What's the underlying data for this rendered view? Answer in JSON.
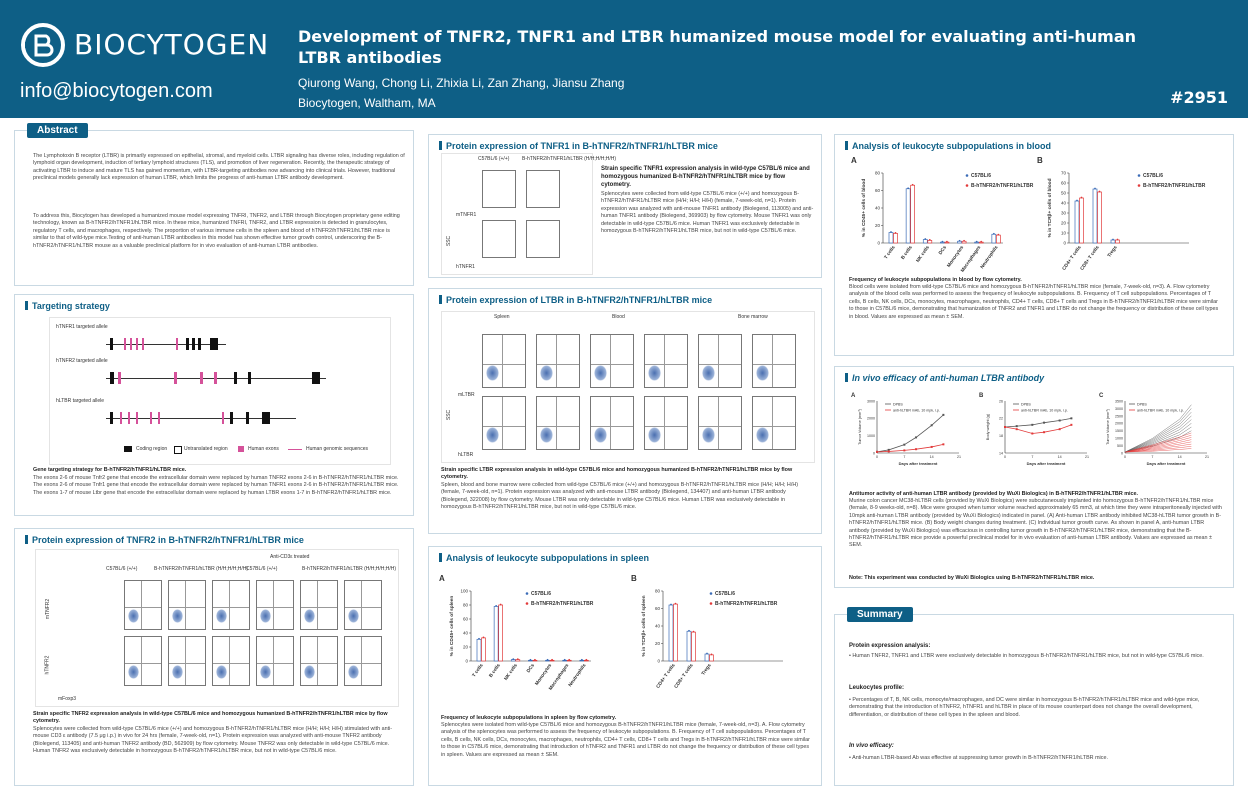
{
  "header": {
    "logo_text": "BIOCYTOGEN",
    "email": "info@biocytogen.com",
    "title": "Development of TNFR2, TNFR1 and LTBR humanized mouse model for evaluating anti-human LTBR antibodies",
    "authors": "Qiurong Wang, Chong Li, Zhixia Li, Zan Zhang, Jiansu Zhang",
    "affiliation": "Biocytogen, Waltham, MA",
    "poster_id": "#2951"
  },
  "abstract": {
    "tag": "Abstract",
    "p1": "The Lymphotoxin B receptor (LTBR) is primarily expressed on epithelial, stromal, and myeloid cells. LTBR signaling has diverse roles, including regulation of lymphoid organ development, induction of tertiary lymphoid structures (TLS), and promotion of liver regeneration. Recently, the therapeutic strategy of activating LTBR to induce and mature TLS has gained momentum, with LTBR-targeting antibodies now advancing into clinical trials. However, traditional preclinical models generally lack expression of human LTBR, which limits the progress of anti-human LTBR antibody development.",
    "p2": "To address this, Biocytogen has developed a humanized mouse model expressing TNFRI, TNFR2, and LTBR through Biocytogen proprietary gene editing technology, known as B-hTNFR2/hTNFR1/hLTBR mice. In these mice, humanized TNFRI, TNFR2, and LTBR expression is detected in granulocytes, regulatory T cells, and macrophages, respectively. The proportion of various immune cells in the spleen and blood of hTNFR2/hTNFR1/hLTBR mice is similar to that of wild-type mice.Testing of anti-human LTBR antibodies in this model has shown effective tumor growth control, underscoring the B-hTNFR2/hTNFR1/hLTBR mouse as a valuable preclinical platform for in vivo evaluation of anti-human LTBR antibodies."
  },
  "targeting": {
    "tag": "Targeting strategy",
    "allele1": "hTNFR1 targeted allele",
    "allele2": "hTNFR2 targeted allele",
    "allele3": "hLTBR targeted allele",
    "legend_coding": "Coding region",
    "legend_untranslated": "Untranslated region",
    "legend_human_exons": "Human exons",
    "legend_human_genomic": "Human genomic sequences",
    "caption_title": "Gene targeting strategy for B-hTNFR2/hTNFR1/hLTBR mice.",
    "caption": "The exons 2-6 of mouse Tnfr2 gene that encode the extracellular domain were replaced by human TNFR2 exons 2-6 in B-hTNFR2/hTNFR1/hLTBR mice. The exons 2-6 of mouse Tnfr1 gene that encode the extracellular domain were replaced by human TNFR1 exons 2-6 in B-hTNFR2/hTNFR1/hLTBR mice. The exons 1-7 of mouse Ltbr gene that encode the extracellular domain were replaced by human LTBR exons 1-7 in B-hTNFR2/hTNFR1/hLTBR mice."
  },
  "tnfr2_expr": {
    "tag": "Protein expression of TNFR2 in B-hTNFR2/hTNFR1/hLTBR mice",
    "treated_label": "Anti-CD3ε treated",
    "col1": "C57BL/6 (+/+)",
    "col2": "B-hTNFR2/hTNFR1/hLTBR (H/H;H/H;H/H)",
    "col3": "C57BL/6 (+/+)",
    "col4": "B-hTNFR2/hTNFR1/hLTBR (H/H;H/H;H/H)",
    "ylabel1": "mTNFR2",
    "ylabel2": "hTNFR2",
    "xlabel": "mFoxp3",
    "caption_title": "Strain specific TNFR2 expression analysis in wild-type C57BL/6 mice and homozygous humanized B-hTNFR2/hTNFR1/hLTBR mice by flow cytometry.",
    "caption": "Splenocytes were collected from wild-type C57BL/6 mice (+/+) and homozygous B-hTNFR2/hTNFR1/hLTBR mice (H/H; H/H; H/H) stimulated with anti-mouse CD3 ε antibody (7.5 μg i.p.) in vivo for 24 hrs (female, 7-week-old, n=1). Protein expression was analyzed with anti-mouse TNFR2 antibody (Biolegend, 113405) and anti-human TNFR2 antibody (BD, 562909) by flow cytometry. Mouse TNFR2 was only detectable in wild-type C57BL/6 mice. Human TNFR2 was exclusively detectable in homozygous B-hTNFR2/hTNFR1/hLTBR mice, but not in wild-type C57BL/6 mice."
  },
  "tnfr1_expr": {
    "tag": "Protein expression of TNFR1 in B-hTNFR2/hTNFR1/hLTBR mice",
    "col1": "C57BL/6 (+/+)",
    "col2": "B-hTNFR2/hTNFR1/hLTBR (H/H;H/H;H/H)",
    "ylabel1": "mTNFR1",
    "ylabel2": "hTNFR1",
    "side": "SSC",
    "caption_title": "Strain specific TNFR1 expression analysis in wild-type C57BL/6 mice and homozygous humanized B-hTNFR2/hTNFR1/hLTBR mice by flow cytometry.",
    "caption": "Splenocytes were collected from wild-type C57BL/6 mice (+/+) and homozygous B-hTNFR2/hTNFR1/hLTBR mice (H/H; H/H; H/H) (female, 7-week-old, n=1). Protein expression was analyzed with anti-mouse TNFR1 antibody (Biolegend, 113005) and anti-human TNFR1 antibody (Biolegend, 369903) by flow cytometry. Mouse TNFR1 was only detectable in wild-type C57BL/6 mice. Human TNFR1 was exclusively detectable in homozygous B-hTNFR2/hTNFR1/hLTBR mice, but not in wild-type C57BL/6 mice."
  },
  "ltbr_expr": {
    "tag": "Protein expression of LTBR in B-hTNFR2/hTNFR1/hLTBR mice",
    "tissue1": "Spleen",
    "tissue2": "Blood",
    "tissue3": "Bone marrow",
    "col_wt": "C57BL/6 (+/+)",
    "col_h": "B-hTNFR2/hTNFR1/hLTBR (H/H; H/H; H/H)",
    "ylabel1": "mLTBR",
    "ylabel2": "hLTBR",
    "side": "SSC",
    "caption_title": "Strain specific LTBR expression analysis in wild-type C57BL/6 mice and homozygous humanized B-hTNFR2/hTNFR1/hLTBR mice by flow cytometry.",
    "caption": "Spleen, blood and bone marrow were collected from wild-type C57BL/6 mice (+/+) and homozygous B-hTNFR2/hTNFR1/hLTBR mice (H/H; H/H; H/H) (female, 7-week-old, n=1). Protein expression was analyzed with anti-mouse LTBR antibody (Biolegend, 134407) and anti-human LTBR antibody (Biolegend, 322008) by flow cytometry. Mouse LTBR was only detectable in wild-type C57BL/6 mice. Human LTBR was exclusively detectable in homozygous B-hTNFR2/hTNFR1/hLTBR mice, but not in wild-type C57BL/6 mice."
  },
  "spleen": {
    "tag": "Analysis of leukocyte subpopulations in spleen",
    "caption_title": "Frequency of leukocyte subpopulations in spleen by flow cytometry.",
    "caption": "Splenocytes were isolated from wild-type C57BL/6 mice and homozygous B-hTNFR2/hTNFR1/hLTBR mice (female, 7-week-old, n=3). A. Flow cytometry analysis of the splenocytes was performed to assess the frequency of leukocyte subpopulations. B. Frequency of T cell subpopulations. Percentages of T cells, B cells, NK cells, DCs, monocytes, macrophages, neutrophils, CD4+ T cells, CD8+ T cells and Tregs in B-hTNFR2/hTNFR1/hLTBR mice were similar to those in C57BL/6 mice, demonstrating that introduction of hTNFR2 and TNFR1 and LTBR do not change the frequency or distribution of these cell types in spleen. Values are expressed as mean ± SEM."
  },
  "blood": {
    "tag": "Analysis of leukocyte subpopulations in blood",
    "caption_title": "Frequency of leukocyte subpopulations in blood by flow cytometry.",
    "caption": "Blood cells were isolated from wild-type C57BL/6 mice and homozygous B-hTNFR2/hTNFR1/hLTBR mice (female, 7-week-old, n=3). A. Flow cytometry analysis of the blood cells was performed to assess the frequency of leukocyte subpopulations. B. Frequency of T cell subpopulations. Percentages of T cells, B cells, NK cells, DCs, monocytes, macrophages, neutrophils, CD4+ T cells, CD8+ T cells and Tregs in B-hTNFR2/hTNFR1/hLTBR mice were similar to those in C57BL/6 mice, demonstrating that humanization of TNFR2 and TNFR1 and LTBR do not change the frequency or distribution of these cell types in blood. Values are expressed as mean ± SEM."
  },
  "invivo": {
    "tag": "In vivo efficacy of anti-human LTBR antibody",
    "caption_title": "Antitumor activity of anti-human LTBR antibody (provided by WuXi Biologics) in B-hTNFR2/hTNFR1/hLTBR mice.",
    "caption": "Murine colon cancer MC38-hLTBR cells (provided by WuXi Biologics) were subcutaneously implanted into homozygous B-hTNFR2/hTNFR1/hLTBR mice (female, 8-9 weeks-old, n=8). Mice were grouped when tumor volume reached approximately 65 mm3, at which time they were intraperitoneally injected with 10mpk anti-human LTBR antibody (provided by WuXi Biologics) indicated in panel. (A) Anti-human LTBR antibody inhibited MC38-hLTBR tumor growth in B-hTNFR2/hTNFR1/hLTBR mice. (B) Body weight changes during treatment. (C) Individual tumor growth curve. As shown in panel A, anti-human LTBR antibody (provided by WuXi Biologics) was efficacious in controlling tumor growth in B-hTNFR2/hTNFR1/hLTBR mice, demonstrating that the B-hTNFR2/hTNFR1/hLTBR mice provide a powerful preclinical model for in vivo evaluation of anti-human LTBR antibody. Values are expressed as mean ± SEM.",
    "note": "Note: This experiment was conducted by WuXi Biologics using B-hTNFR2/hTNFR1/hLTBR mice."
  },
  "summary": {
    "tag": "Summary",
    "h1": "Protein expression analysis:",
    "b1": "Human TNFR2, TNFR1 and LTBR were exclusively detectable in homozygous B-hTNFR2/hTNFR1/hLTBR mice, but not in wild-type C57BL/6 mice.",
    "h2": "Leukocytes profile:",
    "b2": "Percentages of T, B, NK cells, monocyte/macrophages, and DC were similar in homozygous B-hTNFR2/hTNFR1/hLTBR mice and wild-type mice, demonstrating that the introduction of hTNFR2, hTNFR1 and hLTBR in place of its mouse counterpart does not change the overall development, differentiation, or distribution of these cell types in the spleen and blood.",
    "h3": "In vivo efficacy:",
    "b3": "Anti-human LTBR-based Ab was effective at suppressing tumor growth in B-hTNFR2/hTNFR1/hLTBR mice."
  },
  "chart_data": [
    {
      "type": "bar",
      "id": "spleen-A",
      "panel_label": "A",
      "categories": [
        "T cells",
        "B cells",
        "NK cells",
        "DCs",
        "Monocytes",
        "Macrophages",
        "Neutrophils"
      ],
      "series": [
        {
          "name": "C57BL/6",
          "values": [
            31,
            78,
            2,
            1,
            1,
            1,
            1
          ],
          "color": "#3b6cb7"
        },
        {
          "name": "B-hTNFR2/hTNFR1/hLTBR",
          "values": [
            33,
            80,
            2,
            1,
            1,
            1,
            1
          ],
          "color": "#e23a3a"
        }
      ],
      "ylabel": "% in CD45+ cells of spleen",
      "ylim": [
        0,
        100
      ],
      "yticks": [
        0,
        20,
        40,
        60,
        80,
        100
      ]
    },
    {
      "type": "bar",
      "id": "spleen-B",
      "panel_label": "B",
      "categories": [
        "CD4+ T cells",
        "CD8+ T cells",
        "Tregs"
      ],
      "series": [
        {
          "name": "C57BL/6",
          "values": [
            64,
            34,
            8
          ],
          "color": "#3b6cb7"
        },
        {
          "name": "B-hTNFR2/hTNFR1/hLTBR",
          "values": [
            65,
            33,
            7
          ],
          "color": "#e23a3a"
        }
      ],
      "ylabel": "% in TCRβ+ cells of spleen",
      "ylim": [
        0,
        80
      ],
      "yticks": [
        0,
        20,
        40,
        60,
        80
      ]
    },
    {
      "type": "bar",
      "id": "blood-A",
      "panel_label": "A",
      "categories": [
        "T cells",
        "B cells",
        "NK cells",
        "DCs",
        "Monocytes",
        "Macrophages",
        "Neutrophils"
      ],
      "series": [
        {
          "name": "C57BL/6",
          "values": [
            12,
            62,
            4,
            1,
            2,
            1,
            10
          ],
          "color": "#3b6cb7"
        },
        {
          "name": "B-hTNFR2/hTNFR1/hLTBR",
          "values": [
            11,
            66,
            3,
            1,
            2,
            1,
            9
          ],
          "color": "#e23a3a"
        }
      ],
      "ylabel": "% in CD45+ cells of blood",
      "ylim": [
        0,
        80
      ],
      "yticks": [
        0,
        20,
        40,
        60,
        80
      ]
    },
    {
      "type": "bar",
      "id": "blood-B",
      "panel_label": "B",
      "categories": [
        "CD4+ T cells",
        "CD8+ T cells",
        "Tregs"
      ],
      "series": [
        {
          "name": "C57BL/6",
          "values": [
            42,
            54,
            3
          ],
          "color": "#3b6cb7"
        },
        {
          "name": "B-hTNFR2/hTNFR1/hLTBR",
          "values": [
            45,
            51,
            3
          ],
          "color": "#e23a3a"
        }
      ],
      "ylabel": "% in TCRβ+ cells of blood",
      "ylim": [
        0,
        70
      ],
      "yticks": [
        0,
        10,
        20,
        30,
        40,
        50,
        60,
        70
      ]
    },
    {
      "type": "line",
      "id": "invivo-A",
      "panel_label": "A",
      "x": [
        0,
        3,
        7,
        10,
        14,
        17
      ],
      "series": [
        {
          "name": "DPBS",
          "values": [
            65,
            180,
            480,
            900,
            1600,
            2200
          ],
          "color": "#555555"
        },
        {
          "name": "anti-hLTBR mAb, 10 mpk, i.p.",
          "values": [
            65,
            90,
            150,
            220,
            350,
            500
          ],
          "color": "#e23a3a"
        }
      ],
      "xlabel": "Days after treatment",
      "ylabel": "Tumor Volume (mm³)",
      "ylim": [
        0,
        3000
      ],
      "yticks": [
        0,
        1000,
        2000,
        3000
      ],
      "xticks": [
        0,
        7,
        14,
        21
      ]
    },
    {
      "type": "line",
      "id": "invivo-B",
      "panel_label": "B",
      "x": [
        0,
        3,
        7,
        10,
        14,
        17
      ],
      "series": [
        {
          "name": "DPBS",
          "values": [
            20,
            20.2,
            20.5,
            21,
            21.5,
            22
          ],
          "color": "#555555"
        },
        {
          "name": "anti-hLTBR mAb, 10 mpk, i.p.",
          "values": [
            20,
            19.5,
            18.5,
            18.8,
            19.5,
            20.5
          ],
          "color": "#e23a3a"
        }
      ],
      "xlabel": "Days after treatment",
      "ylabel": "Body weight (g)",
      "ylim": [
        14,
        26
      ],
      "yticks": [
        14,
        18,
        22,
        26
      ],
      "xticks": [
        0,
        7,
        14,
        21
      ]
    },
    {
      "type": "line",
      "id": "invivo-C",
      "panel_label": "C",
      "legend": [
        "DPBS",
        "anti-hLTBR mAb, 10 mpk, i.p."
      ],
      "xlabel": "Days after treatment",
      "ylabel": "Tumor Volume (mm³)",
      "ylim": [
        0,
        3500
      ],
      "yticks": [
        0,
        500,
        1000,
        1500,
        2000,
        2500,
        3000,
        3500
      ],
      "xticks": [
        0,
        7,
        14,
        21
      ]
    }
  ]
}
